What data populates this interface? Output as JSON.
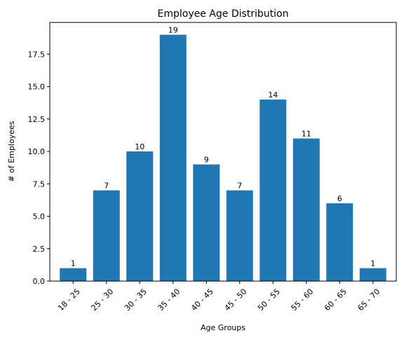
{
  "chart_data": {
    "type": "bar",
    "title": "Employee Age Distribution",
    "xlabel": "Age Groups",
    "ylabel": "# of Employees",
    "categories": [
      "18 - 25",
      "25 - 30",
      "30 - 35",
      "35 - 40",
      "40 - 45",
      "45 - 50",
      "50 - 55",
      "55 - 60",
      "60 - 65",
      "65 - 70"
    ],
    "values": [
      1,
      7,
      10,
      19,
      9,
      7,
      14,
      11,
      6,
      1
    ],
    "ylim": [
      0,
      19.95
    ],
    "yticks": [
      "0.0",
      "2.5",
      "5.0",
      "7.5",
      "10.0",
      "12.5",
      "15.0",
      "17.5"
    ],
    "bar_color": "#1f77b4",
    "grid": false,
    "legend": "none",
    "x_tick_rotation": 45
  }
}
